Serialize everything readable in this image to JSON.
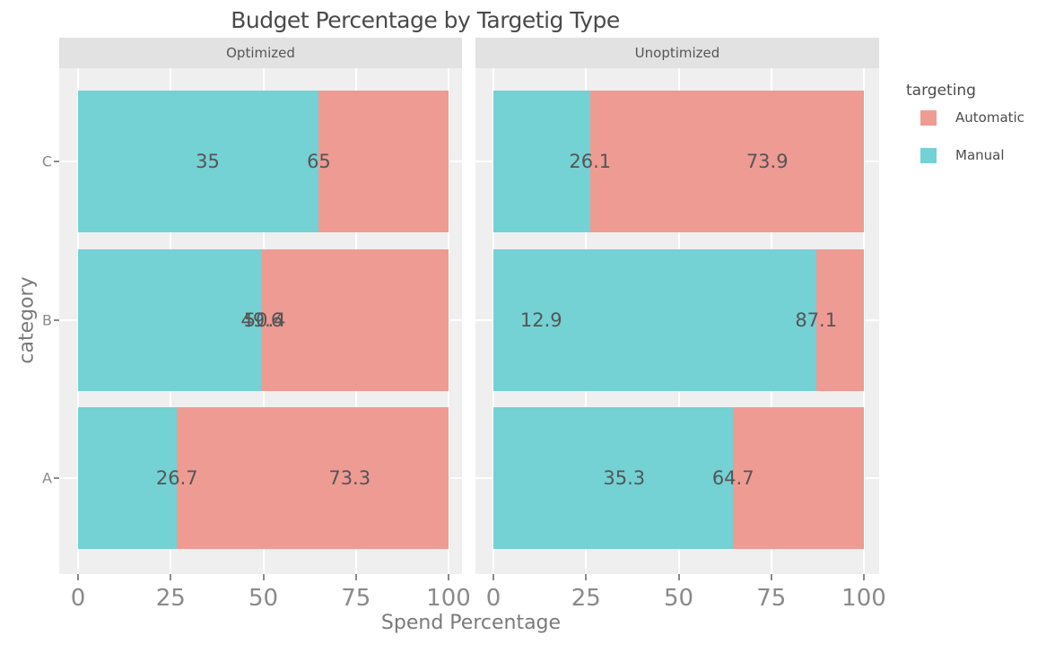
{
  "chart_data": {
    "type": "bar",
    "variant": "horizontal-stacked-faceted",
    "title": "Budget Percentage by Targetig Type",
    "xlabel": "Spend Percentage",
    "ylabel": "category",
    "xlim": [
      0,
      100
    ],
    "xticks": [
      "0",
      "25",
      "50",
      "75",
      "100"
    ],
    "grid": true,
    "categories_top_to_bottom": [
      "C",
      "B",
      "A"
    ],
    "legend": {
      "title": "targeting",
      "position": "right",
      "entries": [
        {
          "label": "Automatic",
          "color": "#EE9B94"
        },
        {
          "label": "Manual",
          "color": "#74D1D4"
        }
      ]
    },
    "facets": [
      {
        "label": "Optimized",
        "series": [
          {
            "name": "Manual",
            "values": [
              65,
              49.6,
              26.7
            ]
          },
          {
            "name": "Automatic",
            "values": [
              35,
              50.4,
              73.3
            ]
          }
        ]
      },
      {
        "label": "Unoptimized",
        "series": [
          {
            "name": "Manual",
            "values": [
              26.1,
              87.1,
              64.7
            ]
          },
          {
            "name": "Automatic",
            "values": [
              73.9,
              12.9,
              35.3
            ]
          }
        ]
      }
    ],
    "value_label_position": "x-equals-value",
    "colors": {
      "panel_bg": "#EFEFEF",
      "strip_bg": "#E2E2E2",
      "gridline": "#FFFFFF",
      "tick_text": "#8A8A8A",
      "value_label_text": "#555555",
      "title_text": "#4A4A4A"
    }
  }
}
